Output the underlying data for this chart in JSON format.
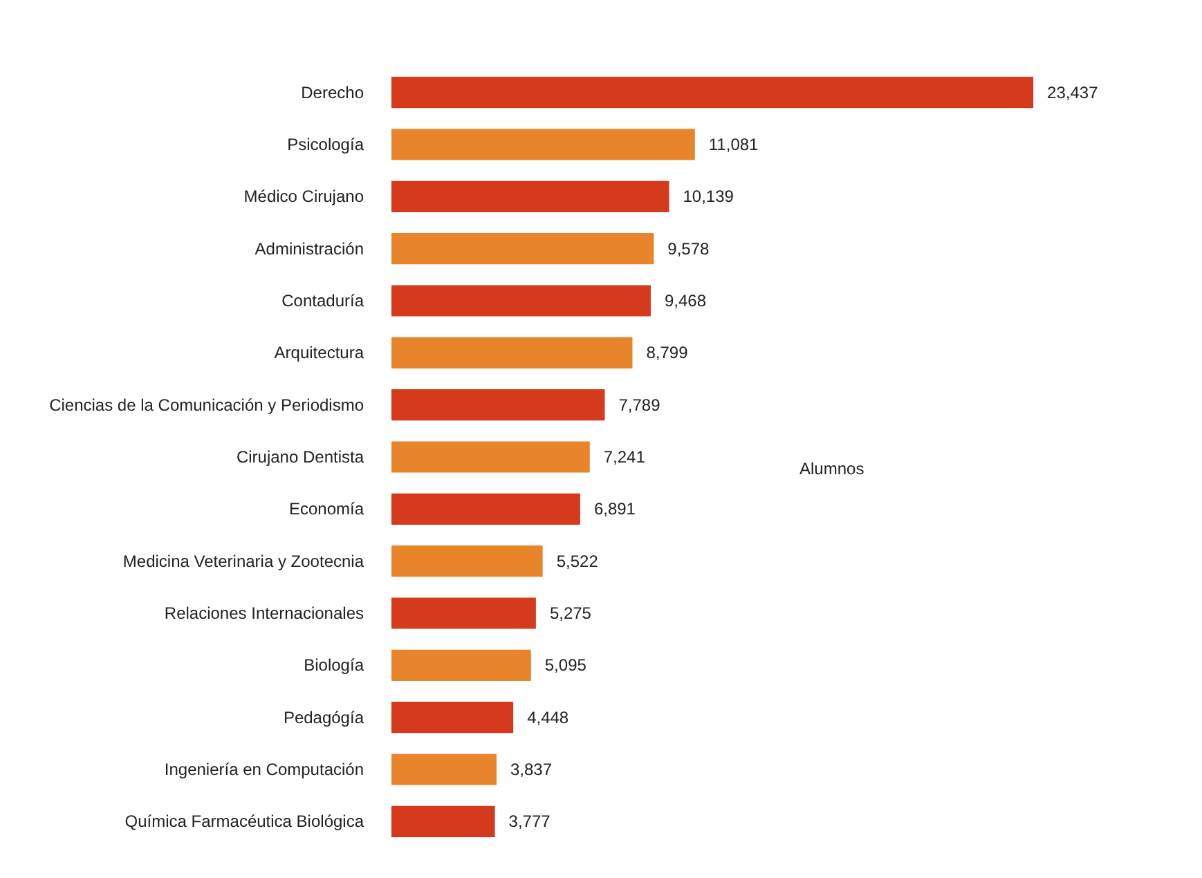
{
  "chart_data": {
    "type": "bar",
    "orientation": "horizontal",
    "categories": [
      "Derecho",
      "Psicología",
      "Médico Cirujano",
      "Administración",
      "Contaduría",
      "Arquitectura",
      "Ciencias de la Comunicación y Periodismo",
      "Cirujano Dentista",
      "Economía",
      "Medicina Veterinaria y Zootecnia",
      "Relaciones Internacionales",
      "Biología",
      "Pedagógía",
      "Ingeniería en Computación",
      "Química Farmacéutica Biológica"
    ],
    "values": [
      23437,
      11081,
      10139,
      9578,
      9468,
      8799,
      7789,
      7241,
      6891,
      5522,
      5275,
      5095,
      4448,
      3837,
      3777
    ],
    "colors": [
      "#d63a1c",
      "#e8842a",
      "#d63a1c",
      "#e8842a",
      "#d63a1c",
      "#e8842a",
      "#d63a1c",
      "#e8842a",
      "#d63a1c",
      "#e8842a",
      "#d63a1c",
      "#e8842a",
      "#d63a1c",
      "#e8842a",
      "#d63a1c"
    ],
    "value_labels": [
      "23,437",
      "11,081",
      "10,139",
      "9,578",
      "9,468",
      "8,799",
      "7,789",
      "7,241",
      "6,891",
      "5,522",
      "5,275",
      "5,095",
      "4,448",
      "3,837",
      "3,777"
    ],
    "annotations": [
      "Alumnos"
    ]
  }
}
